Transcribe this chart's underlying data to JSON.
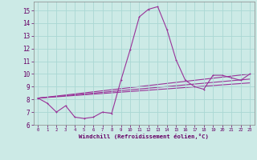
{
  "xlabel": "Windchill (Refroidissement éolien,°C)",
  "bg_color": "#cceae6",
  "grid_color": "#aad8d4",
  "line_color": "#993399",
  "xlim": [
    -0.5,
    23.5
  ],
  "ylim": [
    6.0,
    15.7
  ],
  "yticks": [
    6,
    7,
    8,
    9,
    10,
    11,
    12,
    13,
    14,
    15
  ],
  "xticks": [
    0,
    1,
    2,
    3,
    4,
    5,
    6,
    7,
    8,
    9,
    10,
    11,
    12,
    13,
    14,
    15,
    16,
    17,
    18,
    19,
    20,
    21,
    22,
    23
  ],
  "line1_x": [
    0,
    1,
    2,
    3,
    4,
    5,
    6,
    7,
    8,
    9,
    10,
    11,
    12,
    13,
    14,
    15,
    16,
    17,
    18,
    19,
    20,
    21,
    22,
    23
  ],
  "line1_y": [
    8.1,
    7.7,
    7.0,
    7.5,
    6.6,
    6.5,
    6.6,
    7.0,
    6.9,
    9.5,
    11.9,
    14.5,
    15.1,
    15.3,
    13.5,
    11.1,
    9.5,
    9.0,
    8.8,
    9.9,
    9.9,
    9.7,
    9.5,
    10.0
  ],
  "line2_x": [
    0,
    23
  ],
  "line2_y": [
    8.1,
    10.0
  ],
  "line3_x": [
    0,
    23
  ],
  "line3_y": [
    8.1,
    9.6
  ],
  "line4_x": [
    0,
    23
  ],
  "line4_y": [
    8.1,
    9.3
  ]
}
